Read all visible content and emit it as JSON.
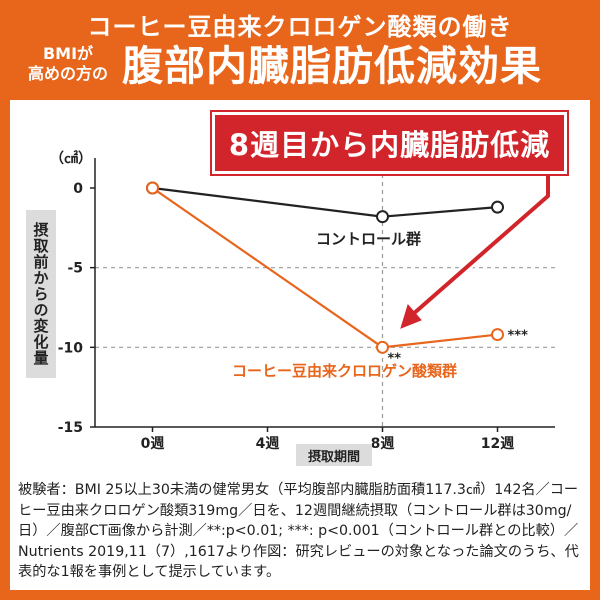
{
  "header": {
    "title_line1": "コーヒー豆由来クロロゲン酸類の働き",
    "subtitle_line1": "BMIが",
    "subtitle_line2": "高めの方の",
    "title_main": "腹部内臓脂肪低減効果"
  },
  "callout": {
    "text": "8週目から内臓脂肪低減"
  },
  "colors": {
    "orange": "#e8651c",
    "red": "#d2252b",
    "black": "#222222",
    "grid": "#9a9a9a"
  },
  "chart_data": {
    "type": "line",
    "ylabel": "摂取前からの変化量",
    "yunit": "（㎠）",
    "xlabel": "摂取期間",
    "x_ticks": [
      0,
      4,
      8,
      12
    ],
    "x_tick_labels": [
      "0週",
      "4週",
      "8週",
      "12週"
    ],
    "xlim": [
      -2,
      14
    ],
    "ylim": [
      -15,
      0
    ],
    "y_ticks": [
      0,
      -5,
      -10,
      -15
    ],
    "y_tick_labels": [
      "0",
      "-5",
      "-10",
      "-15"
    ],
    "gridlines": "horizontal dashed at -5 and -10, vertical dashed at 8",
    "series": [
      {
        "name": "コントロール群",
        "color": "#222222",
        "x": [
          0,
          8,
          12
        ],
        "y": [
          0,
          -1.8,
          -1.2
        ],
        "annotations": [
          "",
          "",
          ""
        ]
      },
      {
        "name": "コーヒー豆由来クロロゲン酸類群",
        "color": "#e8651c",
        "x": [
          0,
          8,
          12
        ],
        "y": [
          0,
          -10,
          -9.2
        ],
        "annotations": [
          "",
          "**",
          "***"
        ]
      }
    ]
  },
  "footnote": "被験者：BMI 25以上30未満の健常男女（平均腹部内臓脂肪面積117.3㎠）142名／コーヒー豆由来クロロゲン酸類319mg／日を、12週間継続摂取（コントロール群は30mg/日）／腹部CT画像から計測／**:p<0.01; ***: p<0.001（コントロール群との比較）／Nutrients 2019,11（7）,1617より作図：研究レビューの対象となった論文のうち、代表的な1報を事例として提示しています。"
}
